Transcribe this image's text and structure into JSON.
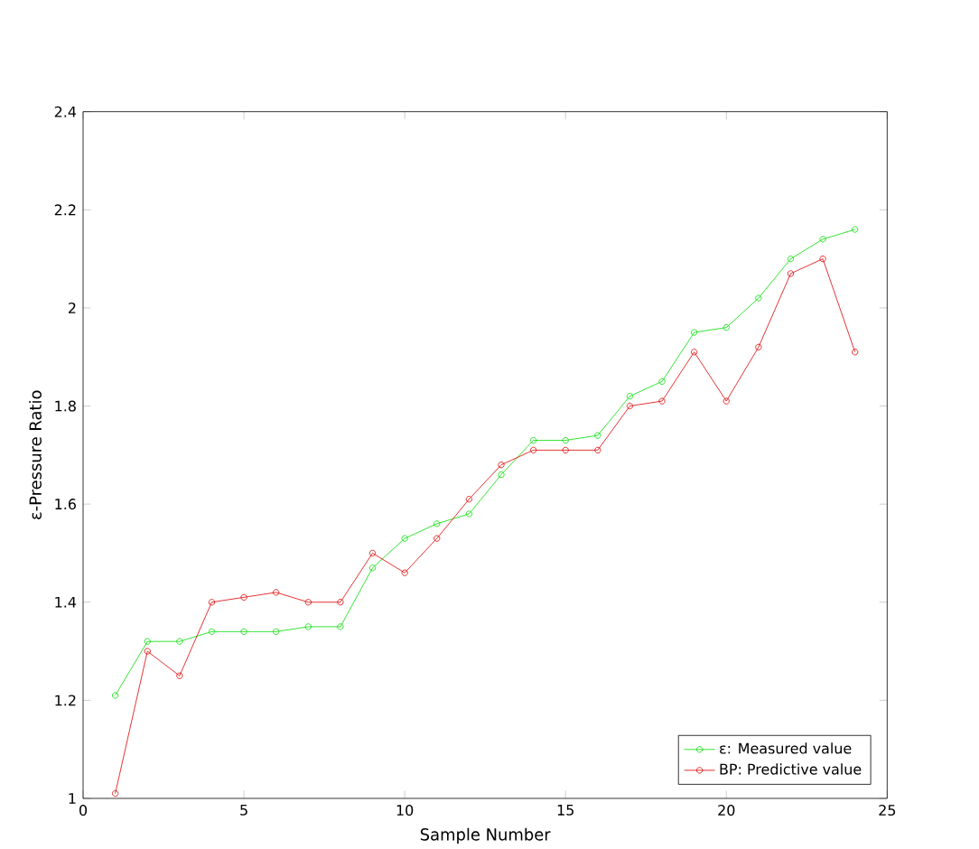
{
  "chart_data": {
    "type": "line",
    "xlabel": "Sample Number",
    "ylabel": "ε-Pressure Ratio",
    "x": [
      1,
      2,
      3,
      4,
      5,
      6,
      7,
      8,
      9,
      10,
      11,
      12,
      13,
      14,
      15,
      16,
      17,
      18,
      19,
      20,
      21,
      22,
      23,
      24
    ],
    "series": [
      {
        "name": "ε:   Measured value",
        "color": "#00dd00",
        "values": [
          1.21,
          1.32,
          1.32,
          1.34,
          1.34,
          1.34,
          1.35,
          1.35,
          1.47,
          1.53,
          1.56,
          1.58,
          1.66,
          1.73,
          1.73,
          1.74,
          1.82,
          1.85,
          1.95,
          1.96,
          2.02,
          2.1,
          2.14,
          2.16
        ]
      },
      {
        "name": "BP:   Predictive value",
        "color": "#dd0000",
        "values": [
          1.01,
          1.3,
          1.25,
          1.4,
          1.41,
          1.42,
          1.4,
          1.4,
          1.5,
          1.46,
          1.53,
          1.61,
          1.68,
          1.71,
          1.71,
          1.71,
          1.8,
          1.81,
          1.91,
          1.81,
          1.92,
          2.07,
          2.1,
          1.91
        ]
      }
    ],
    "xlim": [
      0,
      25
    ],
    "ylim": [
      1,
      2.4
    ],
    "xticks": [
      0,
      5,
      10,
      15,
      20,
      25
    ],
    "yticks": [
      1,
      1.2,
      1.4,
      1.6,
      1.8,
      2,
      2.2,
      2.4
    ],
    "legend": "bottom right",
    "marker": "circle",
    "line_style": "solid",
    "grid": false
  }
}
